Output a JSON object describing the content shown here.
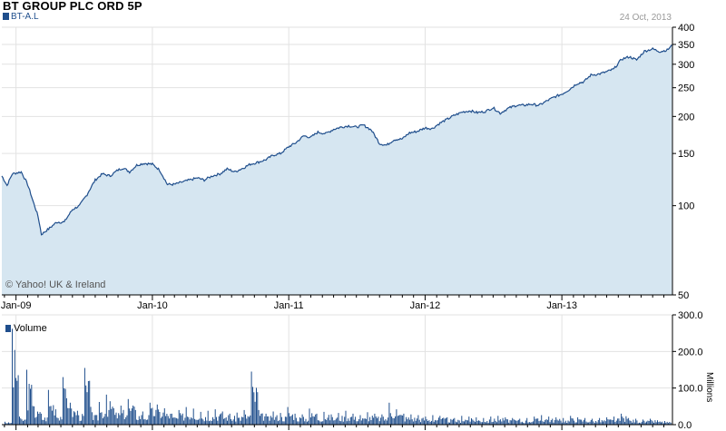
{
  "header": {
    "title": "BT GROUP PLC ORD 5P",
    "ticker": "BT-A.L",
    "date": "24 Oct, 2013",
    "copyright": "© Yahoo! UK & Ireland"
  },
  "colors": {
    "line": "#1f4e8c",
    "fill": "#d6e6f1",
    "grid": "#e2e2e2",
    "axis": "#000000"
  },
  "chart_data": [
    {
      "type": "area",
      "scale": "log",
      "x_tick_labels": [
        "Jan-09",
        "Jan-10",
        "Jan-11",
        "Jan-12",
        "Jan-13"
      ],
      "y_tick_labels": [
        50,
        100,
        150,
        200,
        250,
        300,
        350,
        400
      ],
      "ylim": [
        50,
        400
      ],
      "xlim": [
        "2008-11-24",
        "2013-10-24"
      ],
      "series": [
        {
          "x": [
            "2008-11-24",
            "2008-12-08",
            "2008-12-22",
            "2009-01-15",
            "2009-02-01",
            "2009-02-15",
            "2009-03-01",
            "2009-03-10",
            "2009-04-01",
            "2009-04-20",
            "2009-05-10",
            "2009-06-01",
            "2009-06-20",
            "2009-07-10",
            "2009-08-01",
            "2009-08-20",
            "2009-09-10",
            "2009-10-01",
            "2009-10-15",
            "2009-11-01",
            "2009-11-20",
            "2009-12-10",
            "2010-01-01",
            "2010-01-20",
            "2010-02-10",
            "2010-03-01",
            "2010-03-20",
            "2010-04-10",
            "2010-05-01",
            "2010-05-20",
            "2010-06-10",
            "2010-07-01",
            "2010-07-20",
            "2010-08-10",
            "2010-09-01",
            "2010-09-20",
            "2010-10-10",
            "2010-11-01",
            "2010-11-20",
            "2010-12-10",
            "2011-01-01",
            "2011-01-20",
            "2011-02-10",
            "2011-03-01",
            "2011-03-20",
            "2011-04-10",
            "2011-05-01",
            "2011-05-20",
            "2011-06-10",
            "2011-07-01",
            "2011-07-20",
            "2011-08-10",
            "2011-09-01",
            "2011-09-20",
            "2011-10-10",
            "2011-11-01",
            "2011-11-20",
            "2011-12-10",
            "2012-01-01",
            "2012-01-20",
            "2012-02-10",
            "2012-03-01",
            "2012-03-20",
            "2012-04-10",
            "2012-05-01",
            "2012-05-20",
            "2012-06-10",
            "2012-07-01",
            "2012-07-20",
            "2012-08-10",
            "2012-09-01",
            "2012-09-20",
            "2012-10-10",
            "2012-11-01",
            "2012-11-20",
            "2012-12-10",
            "2013-01-01",
            "2013-01-20",
            "2013-02-10",
            "2013-03-01",
            "2013-03-20",
            "2013-04-10",
            "2013-05-01",
            "2013-05-20",
            "2013-06-10",
            "2013-07-01",
            "2013-07-20",
            "2013-08-10",
            "2013-09-01",
            "2013-09-20",
            "2013-10-10",
            "2013-10-24"
          ],
          "values": [
            126,
            117,
            128,
            130,
            118,
            104,
            92,
            80,
            84,
            88,
            88,
            97,
            100,
            109,
            122,
            128,
            126,
            132,
            134,
            130,
            137,
            139,
            138,
            132,
            118,
            118,
            120,
            122,
            124,
            122,
            126,
            128,
            133,
            130,
            134,
            138,
            140,
            143,
            148,
            150,
            158,
            163,
            172,
            170,
            177,
            175,
            181,
            184,
            186,
            184,
            187,
            180,
            162,
            160,
            167,
            168,
            176,
            178,
            183,
            182,
            190,
            196,
            202,
            207,
            209,
            206,
            208,
            214,
            205,
            213,
            218,
            218,
            220,
            218,
            225,
            232,
            238,
            246,
            258,
            262,
            276,
            278,
            283,
            289,
            312,
            318,
            310,
            332,
            338,
            331,
            335,
            348
          ]
        }
      ]
    },
    {
      "type": "bar",
      "series_name": "Volume",
      "ylabel": "Millions",
      "y_tick_labels": [
        "300.0",
        "200.0",
        "100.0",
        "0.0"
      ],
      "ylim": [
        0,
        300
      ],
      "values": [
        8,
        262,
        22,
        150,
        50,
        30,
        95,
        42,
        130,
        60,
        38,
        155,
        34,
        62,
        82,
        45,
        52,
        70,
        40,
        36,
        60,
        55,
        45,
        30,
        40,
        48,
        44,
        35,
        38,
        42,
        36,
        30,
        33,
        40,
        145,
        40,
        30,
        36,
        32,
        48,
        30,
        28,
        44,
        30,
        35,
        28,
        32,
        38,
        30,
        26,
        34,
        30,
        28,
        60,
        42,
        30,
        28,
        26,
        22,
        26,
        24,
        20,
        18,
        24,
        22,
        20,
        18,
        22,
        24,
        20,
        18,
        16,
        18,
        22,
        26,
        22,
        20,
        18,
        24,
        20,
        18,
        16,
        18,
        20,
        22,
        30,
        18,
        16,
        14,
        16,
        12,
        10
      ]
    }
  ]
}
